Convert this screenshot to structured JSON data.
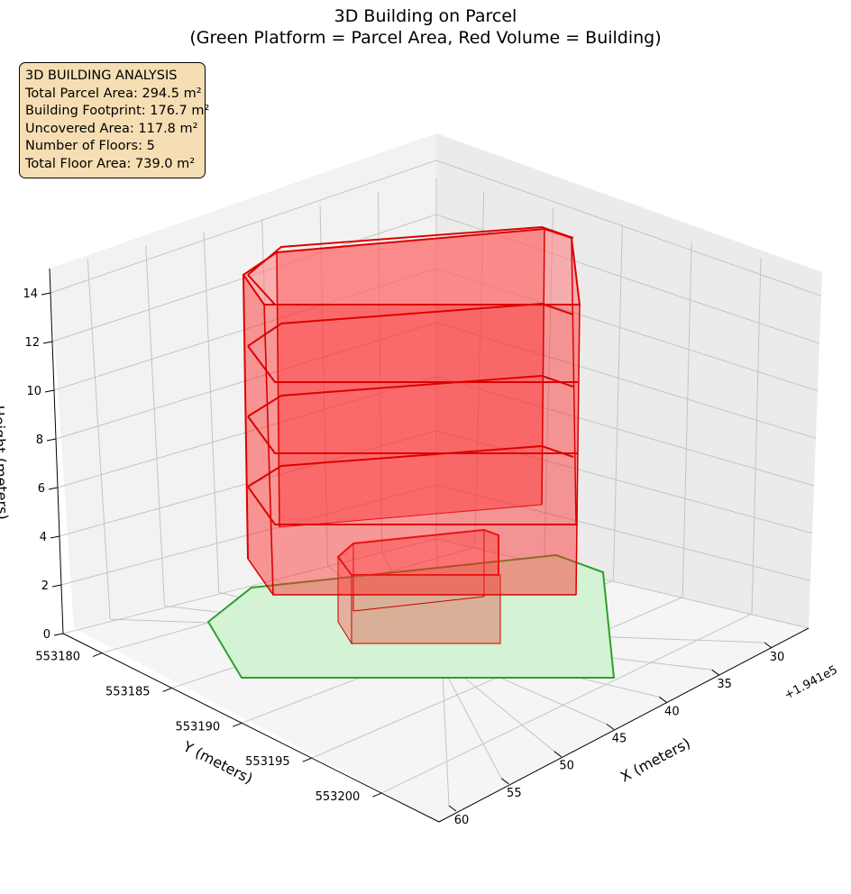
{
  "title": {
    "line1": "3D Building on Parcel",
    "line2": "(Green Platform = Parcel Area, Red Volume = Building)"
  },
  "info_box": {
    "heading": "3D BUILDING ANALYSIS",
    "lines": [
      "Total Parcel Area: 294.5 m²",
      "Building Footprint: 176.7 m²",
      "Uncovered Area: 117.8 m²",
      "Number of Floors: 5",
      "Total Floor Area: 739.0 m²"
    ]
  },
  "chart_data": {
    "type": "3d-polygons",
    "title": "3D Building on Parcel\n(Green Platform = Parcel Area, Red Volume = Building)",
    "xlabel": "X (meters)",
    "ylabel": "Y (meters)",
    "zlabel": "Height (meters)",
    "x_offset_label": "+1.941e5",
    "x_ticks": [
      "30",
      "35",
      "40",
      "45",
      "50",
      "55",
      "60"
    ],
    "y_ticks": [
      "553180",
      "553185",
      "553190",
      "553195",
      "553200"
    ],
    "z_ticks": [
      "0",
      "2",
      "4",
      "6",
      "8",
      "10",
      "12",
      "14"
    ],
    "zlim": [
      0,
      15
    ],
    "grid": true,
    "parcel_color": "#2ca02c",
    "parcel_fill": "#d4f2d4",
    "building_color": "#ff0000",
    "building_edge": "#dd0000",
    "floors": 5,
    "floor_height_m": 3,
    "parcel_area_m2": 294.5,
    "footprint_area_m2": 176.7,
    "uncovered_area_m2": 117.8,
    "total_floor_area_m2": 739.0
  }
}
